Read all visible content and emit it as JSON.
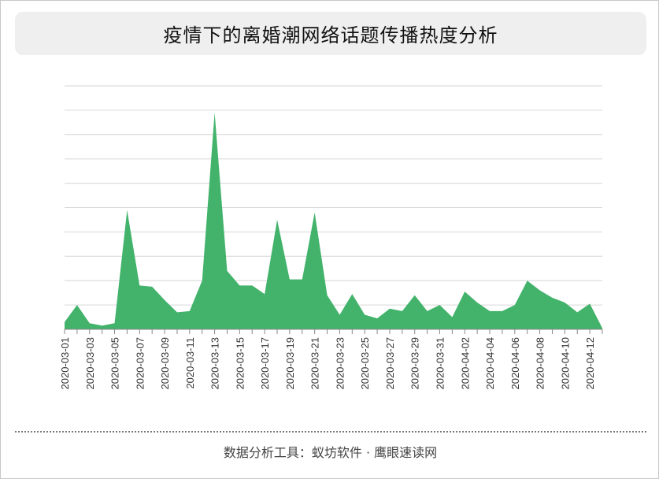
{
  "title": "疫情下的离婚潮网络话题传播热度分析",
  "footer": "数据分析工具：蚁坊软件 · 鹰眼速读网",
  "colors": {
    "area": "#43b36c",
    "grid": "#d6d6d6",
    "axis": "#888888",
    "title_bg": "#efefef"
  },
  "chart_data": {
    "type": "area",
    "title": "疫情下的离婚潮网络话题传播热度分析",
    "xlabel": "",
    "ylabel": "",
    "y_tick_labels_shown": false,
    "grid": true,
    "legend": "none",
    "ylim": [
      0,
      10
    ],
    "x": [
      "2020-03-01",
      "2020-03-02",
      "2020-03-03",
      "2020-03-04",
      "2020-03-05",
      "2020-03-06",
      "2020-03-07",
      "2020-03-08",
      "2020-03-09",
      "2020-03-10",
      "2020-03-11",
      "2020-03-12",
      "2020-03-13",
      "2020-03-14",
      "2020-03-15",
      "2020-03-16",
      "2020-03-17",
      "2020-03-18",
      "2020-03-19",
      "2020-03-20",
      "2020-03-21",
      "2020-03-22",
      "2020-03-23",
      "2020-03-24",
      "2020-03-25",
      "2020-03-26",
      "2020-03-27",
      "2020-03-28",
      "2020-03-29",
      "2020-03-30",
      "2020-03-31",
      "2020-04-01",
      "2020-04-02",
      "2020-04-03",
      "2020-04-04",
      "2020-04-05",
      "2020-04-06",
      "2020-04-07",
      "2020-04-08",
      "2020-04-09",
      "2020-04-10",
      "2020-04-11",
      "2020-04-12",
      "2020-04-13"
    ],
    "x_tick_labels": [
      "2020-03-01",
      "2020-03-03",
      "2020-03-05",
      "2020-03-07",
      "2020-03-09",
      "2020-03-11",
      "2020-03-13",
      "2020-03-15",
      "2020-03-17",
      "2020-03-19",
      "2020-03-21",
      "2020-03-23",
      "2020-03-25",
      "2020-03-27",
      "2020-03-29",
      "2020-03-31",
      "2020-04-02",
      "2020-04-04",
      "2020-04-06",
      "2020-04-08",
      "2020-04-10",
      "2020-04-12"
    ],
    "values": [
      0.3,
      1.0,
      0.25,
      0.15,
      0.25,
      4.9,
      1.8,
      1.75,
      1.2,
      0.7,
      0.75,
      2.0,
      8.9,
      2.4,
      1.8,
      1.8,
      1.45,
      4.5,
      2.05,
      2.05,
      4.8,
      1.4,
      0.6,
      1.45,
      0.6,
      0.45,
      0.85,
      0.75,
      1.4,
      0.75,
      1.0,
      0.5,
      1.55,
      1.1,
      0.75,
      0.75,
      1.0,
      2.0,
      1.6,
      1.3,
      1.1,
      0.7,
      1.05,
      0.05
    ]
  }
}
